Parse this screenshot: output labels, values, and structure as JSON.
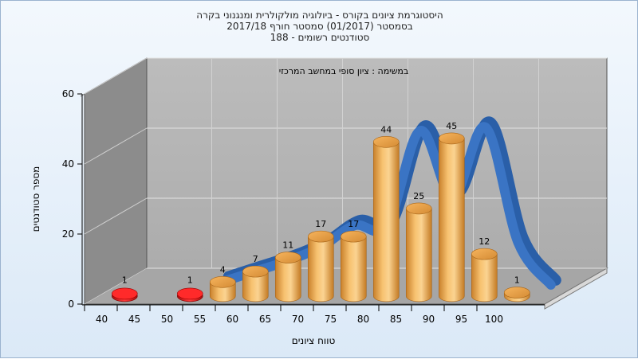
{
  "chart_data": {
    "type": "bar",
    "title": [
      "היסטוגרמת ציונים בקורס - ביולוגיה מולקולרית ומנגנוני בקרה",
      "בסמסטר  (01/2017)  סמסטר חורף 2017/18",
      "סטודנטים רשומים - 188"
    ],
    "subtitle": "במשימה : ציון סופי במחשב המרכזי",
    "xlabel": "טווח ציונים",
    "ylabel": "מספר סטודנטים",
    "x_ticks": [
      "40",
      "45",
      "50",
      "55",
      "60",
      "65",
      "70",
      "75",
      "80",
      "85",
      "90",
      "95",
      "100"
    ],
    "y_ticks": [
      "0",
      "20",
      "40",
      "60"
    ],
    "ylim": [
      0,
      60
    ],
    "grid": true,
    "bars": [
      {
        "range": "40-45",
        "value": 1,
        "color": "red"
      },
      {
        "range": "45-50",
        "value": 0,
        "color": "red"
      },
      {
        "range": "50-55",
        "value": 1,
        "color": "red"
      },
      {
        "range": "55-60",
        "value": 4,
        "color": "orange"
      },
      {
        "range": "60-65",
        "value": 7,
        "color": "orange"
      },
      {
        "range": "65-70",
        "value": 11,
        "color": "orange"
      },
      {
        "range": "70-75",
        "value": 17,
        "color": "orange"
      },
      {
        "range": "75-80",
        "value": 17,
        "color": "orange"
      },
      {
        "range": "80-85",
        "value": 44,
        "color": "orange"
      },
      {
        "range": "85-90",
        "value": 25,
        "color": "orange"
      },
      {
        "range": "90-95",
        "value": 45,
        "color": "orange"
      },
      {
        "range": "95-100",
        "value": 12,
        "color": "orange"
      },
      {
        "range": "100",
        "value": 1,
        "color": "orange"
      }
    ],
    "value_labels": [
      "1",
      "",
      "1",
      "4",
      "7",
      "11",
      "17",
      "17",
      "44",
      "25",
      "45",
      "12",
      "1"
    ],
    "curve": {
      "description_color": "#3a74c4",
      "values": [
        null,
        null,
        null,
        1,
        4,
        7,
        11,
        17,
        17,
        44,
        25,
        45,
        12,
        0
      ]
    },
    "colors": {
      "failing_bar": "#e31b1b",
      "passing_bar": "#f0a64a",
      "curve": "#3a74c4",
      "back_wall": "#b4b4b4",
      "side_wall": "#8a8a8a",
      "floor": "#a4a4a4"
    }
  }
}
